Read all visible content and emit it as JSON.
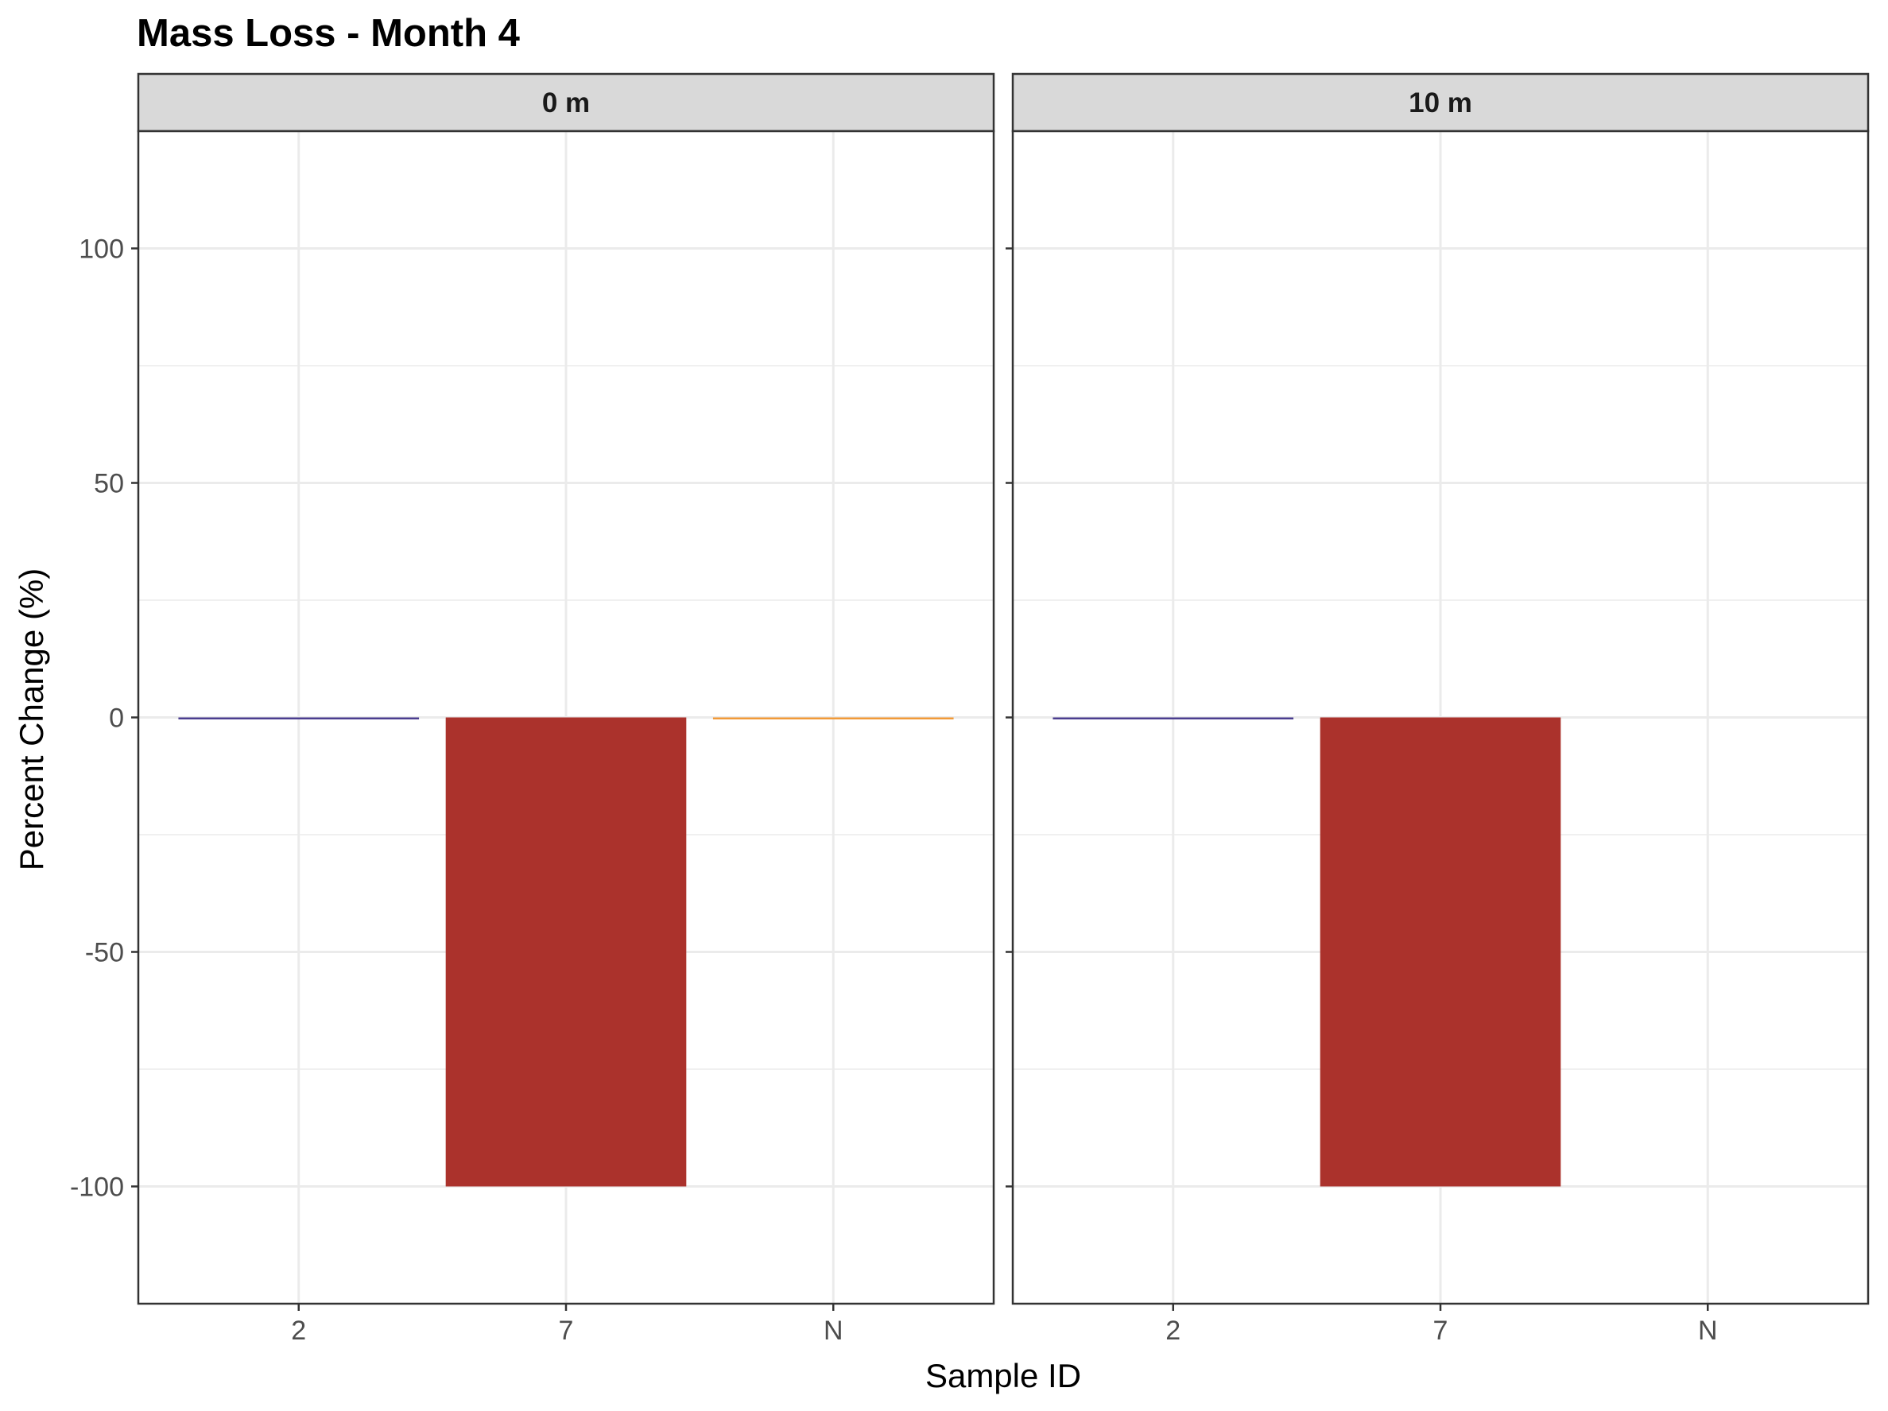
{
  "chart_data": {
    "type": "bar",
    "title": "Mass Loss - Month 4",
    "xlabel": "Sample ID",
    "ylabel": "Percent Change (%)",
    "ylim": [
      -125,
      125
    ],
    "yticks": [
      -100,
      -50,
      0,
      50,
      100
    ],
    "categories": [
      "2",
      "7",
      "N"
    ],
    "grid": true,
    "panels": [
      {
        "label": "0 m",
        "values": [
          -0.4,
          -100,
          -0.3
        ],
        "colors": [
          "#4b3d8f",
          "#ab322c",
          "#f19a38"
        ]
      },
      {
        "label": "10 m",
        "values": [
          -0.3,
          -100,
          null
        ],
        "colors": [
          "#4b3d8f",
          "#ab322c",
          "#f19a38"
        ]
      }
    ]
  }
}
